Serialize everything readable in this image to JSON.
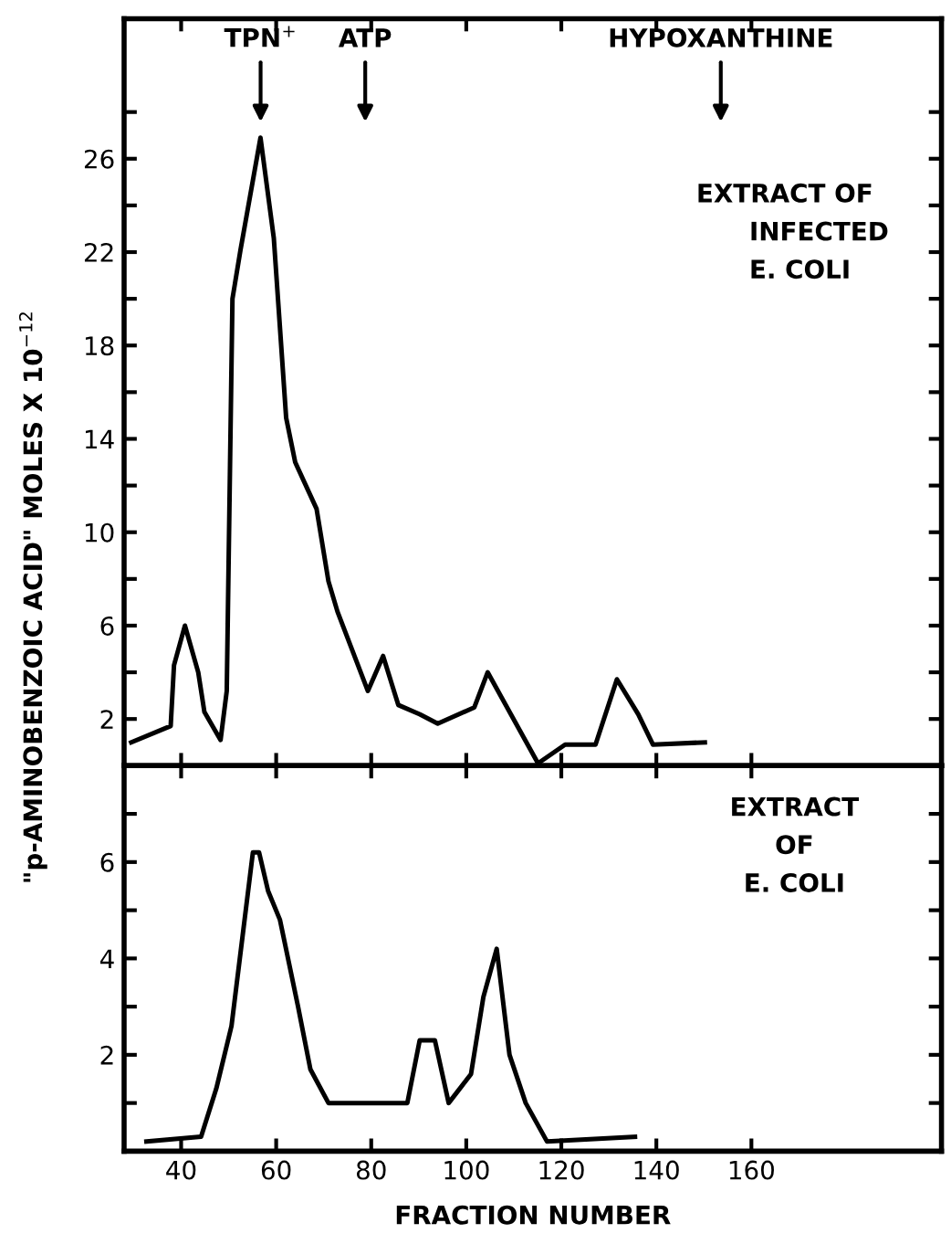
{
  "chart_data": [
    {
      "type": "line",
      "ylabel": "\"p-AMINOBENZOIC ACID\" MOLES X 10$^{−12}$",
      "tick_labels": "y",
      "grid": false,
      "legend": false,
      "series": [
        {
          "color": "#000000",
          "x": [
            29.5,
            37.8,
            38.5,
            40.8,
            43.6,
            44.9,
            48.3,
            49.6,
            50.8,
            52.5,
            56.7,
            59.5,
            62.1,
            64.0,
            68.5,
            71.0,
            72.9,
            79.3,
            82.5,
            85.7,
            90.2,
            94.0,
            101.7,
            104.5,
            115.1,
            120.8,
            127.2,
            131.7,
            136.2,
            139.3,
            150.2
          ],
          "values": [
            1.0,
            1.7,
            4.3,
            6.0,
            4.0,
            2.3,
            1.1,
            3.2,
            20.0,
            22.1,
            26.9,
            22.6,
            14.9,
            13.0,
            11.0,
            7.9,
            6.6,
            3.2,
            4.7,
            2.6,
            2.2,
            1.8,
            2.5,
            4.0,
            0.1,
            0.9,
            0.9,
            3.7,
            2.2,
            0.9,
            1.0
          ]
        }
      ],
      "xlim": [
        28,
        200
      ],
      "ylim": [
        0,
        32
      ],
      "xticks": [
        {
          "value": 40,
          "label": null
        },
        {
          "value": 60,
          "label": null
        },
        {
          "value": 80,
          "label": null
        },
        {
          "value": 100,
          "label": null
        },
        {
          "value": 120,
          "label": null
        },
        {
          "value": 140,
          "label": null
        },
        {
          "value": 160,
          "label": null
        }
      ],
      "yticks": [
        2,
        {
          "value": 4,
          "label": null
        },
        6,
        {
          "value": 8,
          "label": null
        },
        10,
        {
          "value": 12,
          "label": null
        },
        14,
        {
          "value": 16,
          "label": null
        },
        18,
        {
          "value": 20,
          "label": null
        },
        22,
        {
          "value": 24,
          "label": null
        },
        26,
        {
          "value": 28,
          "label": null
        }
      ],
      "annotations": [
        "TPN$^{+}$",
        "ATP",
        "HYPOXANTHINE",
        "EXTRACT OF\n      INFECTED\n      E. COLI"
      ]
    },
    {
      "type": "line",
      "xlabel": "FRACTION NUMBER",
      "grid": false,
      "legend": false,
      "series": [
        {
          "color": "#000000",
          "x": [
            32.7,
            44.2,
            47.4,
            50.6,
            55.1,
            56.4,
            58.3,
            60.8,
            64.6,
            67.2,
            71.0,
            87.6,
            90.2,
            93.4,
            96.3,
            101.0,
            103.6,
            106.4,
            109.1,
            112.5,
            117.0,
            135.5
          ],
          "values": [
            0.2,
            0.3,
            1.3,
            2.6,
            6.2,
            6.2,
            5.4,
            4.8,
            3.0,
            1.7,
            1.0,
            1.0,
            2.3,
            2.3,
            1.0,
            1.6,
            3.2,
            4.2,
            2.0,
            1.0,
            0.2,
            0.3
          ]
        }
      ],
      "xlim": [
        28,
        200
      ],
      "ylim": [
        0,
        8
      ],
      "xticks": [
        40,
        60,
        80,
        100,
        120,
        140,
        160
      ],
      "yticks": [
        {
          "value": 1,
          "label": null
        },
        2,
        {
          "value": 3,
          "label": null
        },
        4,
        {
          "value": 5,
          "label": null
        },
        6,
        {
          "value": 7,
          "label": null
        }
      ],
      "annotations": [
        "EXTRACT\nOF\nE. COLI"
      ]
    }
  ]
}
